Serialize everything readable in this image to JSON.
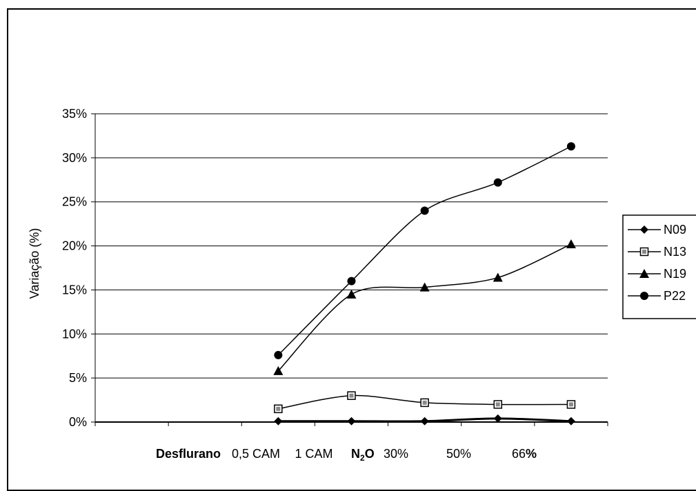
{
  "chart_data": {
    "type": "line",
    "title": "",
    "ylabel": "Variação (%)",
    "xlabel": "",
    "ylim": [
      0,
      0.35
    ],
    "yticks": [
      "0%",
      "5%",
      "10%",
      "15%",
      "20%",
      "25%",
      "30%",
      "35%"
    ],
    "category_groups": [
      {
        "label": "Desflurano",
        "bold": true
      },
      {
        "label": "N",
        "sub": "2",
        "suffix": "O",
        "bold": true
      }
    ],
    "categories": [
      "",
      "0,5 CAM",
      "1 CAM",
      "30%",
      "50%",
      "66%"
    ],
    "category_suffix_bold": "%",
    "series": [
      {
        "name": "N09",
        "marker": "diamond",
        "values": [
          null,
          0.001,
          0.001,
          0.001,
          0.004,
          0.001
        ]
      },
      {
        "name": "N13",
        "marker": "square-open",
        "values": [
          null,
          0.015,
          0.03,
          0.022,
          0.02,
          0.02
        ]
      },
      {
        "name": "N19",
        "marker": "triangle",
        "values": [
          null,
          0.058,
          0.145,
          0.153,
          0.164,
          0.202
        ]
      },
      {
        "name": "P22",
        "marker": "circle",
        "values": [
          null,
          0.076,
          0.16,
          0.24,
          0.272,
          0.313
        ]
      }
    ],
    "grid": true,
    "legend": "right"
  }
}
